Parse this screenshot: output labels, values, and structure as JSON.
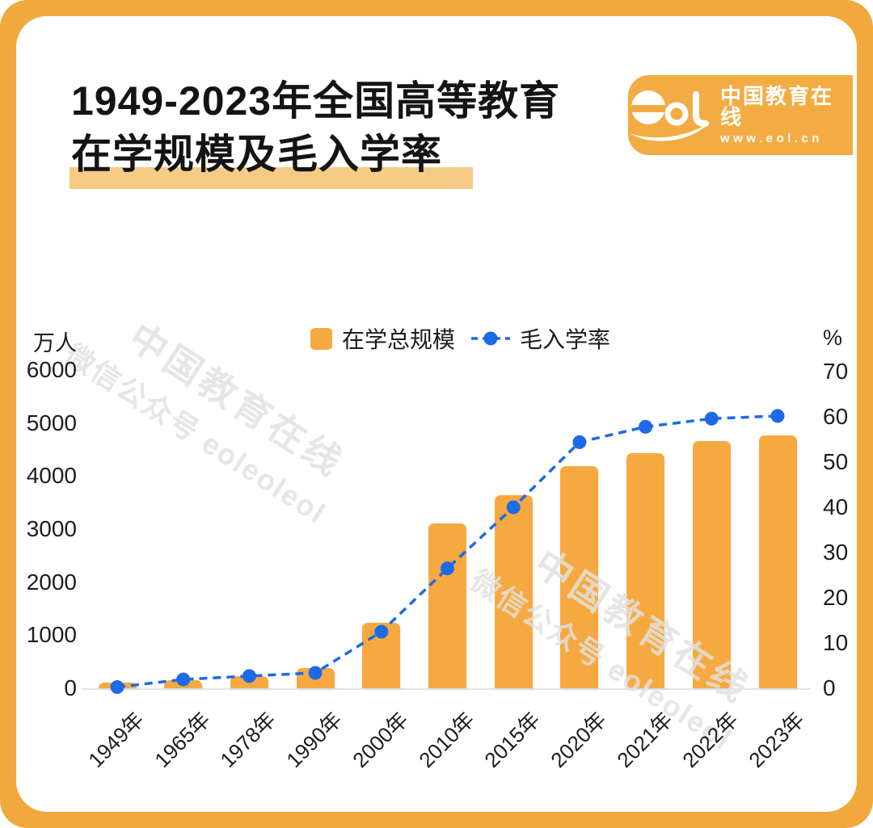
{
  "page": {
    "frame_color": "#F1A83C",
    "card_color": "#ffffff"
  },
  "header": {
    "title_line1": "1949-2023年全国高等教育",
    "title_line2": "在学规模及毛入学率",
    "highlight_color": "#F5CB86",
    "logo": {
      "brand": "中国教育在线",
      "url": "www.eol.cn",
      "box_color": "#F3AC43"
    }
  },
  "watermark": {
    "line1": "中国教育在线",
    "line2": "微信公众号 eoleoleol"
  },
  "chart_data": {
    "type": "bar",
    "title": "1949-2023年全国高等教育在学规模及毛入学率",
    "categories": [
      "1949年",
      "1965年",
      "1978年",
      "1990年",
      "2000年",
      "2010年",
      "2015年",
      "2020年",
      "2021年",
      "2022年",
      "2023年"
    ],
    "series": [
      {
        "name": "在学总规模",
        "type": "bar",
        "unit": "万人",
        "color": "#F7A941",
        "values": [
          11.7,
          155,
          228,
          382,
          1230,
          3105,
          3647,
          4183,
          4430,
          4655,
          4763
        ]
      },
      {
        "name": "毛入学率",
        "type": "line",
        "unit": "%",
        "color": "#1E6AE6",
        "values": [
          0.26,
          1.95,
          2.7,
          3.4,
          12.5,
          26.5,
          40,
          54.4,
          57.8,
          59.6,
          60.2
        ]
      }
    ],
    "left_axis": {
      "label": "万人",
      "min": 0,
      "max": 6000,
      "ticks": [
        6000,
        5000,
        4000,
        3000,
        2000,
        1000,
        0
      ]
    },
    "right_axis": {
      "label": "%",
      "min": 0,
      "max": 70,
      "ticks": [
        70,
        60,
        50,
        40,
        30,
        20,
        10,
        0
      ]
    },
    "legend_position": "top-center",
    "grid": false,
    "line_style": "dashed",
    "bar_color": "#F7A941",
    "line_color": "#1E6AE6"
  }
}
